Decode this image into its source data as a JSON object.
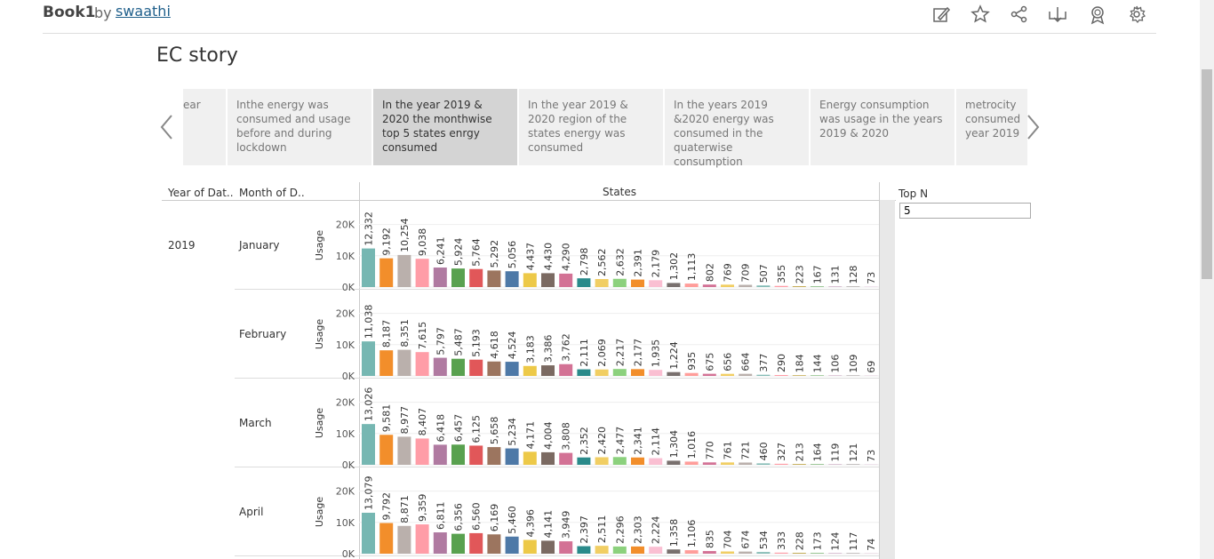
{
  "header": {
    "book_title": "Book1",
    "by": "by",
    "author": "swaathi",
    "toolbar_icons": [
      "edit-icon",
      "star-icon",
      "share-icon",
      "download-icon",
      "badge-icon",
      "settings-icon"
    ]
  },
  "story": {
    "title": "EC story",
    "cards": [
      {
        "text": "ear"
      },
      {
        "text": "Inthe energy was consumed and usage before and during lockdown"
      },
      {
        "text": "In the year 2019 & 2020 the monthwise top 5 states enrgy consumed",
        "active": true
      },
      {
        "text": "In the year 2019 & 2020 region of the states energy was consumed"
      },
      {
        "text": "In the years  2019 &2020 energy was consumed in the quaterwise consumption"
      },
      {
        "text": "Energy consumption was usage in the years 2019 & 2020"
      },
      {
        "text": "metrocity consumed year 2019"
      }
    ]
  },
  "table": {
    "col_year": "Year of Dat..",
    "col_month": "Month of D..",
    "col_states": "States",
    "year": "2019",
    "axis_label": "Usage",
    "ticks": [
      "20K",
      "10K",
      "0K"
    ]
  },
  "filter": {
    "label": "Top N",
    "value": "5"
  },
  "colors": [
    "#76b7b2",
    "#f28e2b",
    "#bab0ac",
    "#ff9da7",
    "#b07aa1",
    "#59a14f",
    "#e15759",
    "#9c755f",
    "#4e79a7",
    "#edc948",
    "#7b6a62",
    "#d37295",
    "#2a8a8a",
    "#f1ce63",
    "#8cd17d",
    "#f28e2b",
    "#fabfd2",
    "#79706e",
    "#ff9d9a",
    "#d37295",
    "#f1ce63",
    "#bab0ac",
    "#86bcb6",
    "#ff9da7",
    "#b6992d",
    "#59a14f",
    "#b07aa1",
    "#79706e",
    "#d4a6c8"
  ],
  "chart_data": {
    "type": "bar",
    "ylim": [
      0,
      25000
    ],
    "ticks": [
      0,
      10000,
      20000
    ],
    "ylabel": "Usage",
    "xlabel": "States",
    "series": [
      {
        "name": "January",
        "values": [
          12332,
          9192,
          10254,
          9038,
          6241,
          5924,
          5764,
          5292,
          5056,
          4437,
          4430,
          4290,
          2798,
          2562,
          2632,
          2391,
          2179,
          1302,
          1113,
          802,
          769,
          709,
          507,
          355,
          223,
          167,
          131,
          128,
          73
        ]
      },
      {
        "name": "February",
        "values": [
          11038,
          8187,
          8351,
          7615,
          5797,
          5487,
          5193,
          4618,
          4524,
          3183,
          3386,
          3762,
          2111,
          2069,
          2217,
          2177,
          1935,
          1224,
          935,
          675,
          656,
          664,
          377,
          290,
          184,
          144,
          106,
          109,
          69
        ]
      },
      {
        "name": "March",
        "values": [
          13026,
          9581,
          8977,
          8407,
          6418,
          6457,
          6125,
          5658,
          5234,
          4171,
          4004,
          3808,
          2352,
          2420,
          2477,
          2341,
          2114,
          1304,
          1016,
          770,
          761,
          721,
          460,
          327,
          213,
          164,
          119,
          121,
          73
        ]
      },
      {
        "name": "April",
        "values": [
          13079,
          9792,
          8871,
          9359,
          6811,
          6356,
          6560,
          6169,
          5460,
          4396,
          4141,
          3949,
          2397,
          2511,
          2296,
          2303,
          2224,
          1358,
          1106,
          835,
          704,
          674,
          534,
          333,
          228,
          173,
          124,
          117,
          74
        ]
      }
    ]
  }
}
